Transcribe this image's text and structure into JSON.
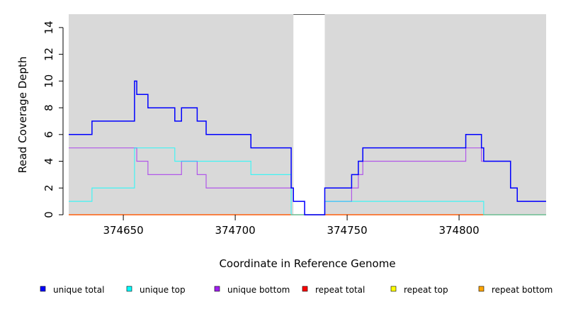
{
  "chart_data": {
    "type": "line",
    "step": true,
    "title": "",
    "xlabel": "Coordinate in Reference Genome",
    "ylabel": "Read Coverage Depth",
    "xlim": [
      374625.6,
      374838.9
    ],
    "ylim": [
      0,
      15
    ],
    "xticks": [
      374650,
      374700,
      374750,
      374800
    ],
    "xtick_labels": [
      "374650",
      "374700",
      "374750",
      "374800"
    ],
    "yticks": [
      0,
      2,
      4,
      6,
      8,
      10,
      12,
      14
    ],
    "ytick_labels": [
      "0",
      "2",
      "4",
      "6",
      "8",
      "10",
      "12",
      "14"
    ],
    "shaded_regions": [
      [
        374625.6,
        374726
      ],
      [
        374740,
        374838.9
      ]
    ],
    "legend_position": "bottom",
    "series": [
      {
        "name": "unique total",
        "color": "#0000ff",
        "x": [
          374625.6,
          374636,
          374655,
          374656,
          374661,
          374673,
          374676,
          374683,
          374687,
          374707,
          374725,
          374726,
          374731,
          374740,
          374752,
          374755,
          374757,
          374803,
          374810,
          374811,
          374823,
          374826,
          374838.9
        ],
        "y": [
          6,
          7,
          10,
          9,
          8,
          7,
          8,
          7,
          6,
          5,
          2,
          1,
          0,
          2,
          3,
          4,
          5,
          6,
          5,
          4,
          2,
          1,
          1
        ]
      },
      {
        "name": "unique top",
        "color": "#00ffff",
        "x": [
          374625.6,
          374636,
          374655,
          374673,
          374707,
          374725,
          374740,
          374811,
          374838.9
        ],
        "y": [
          1,
          2,
          5,
          4,
          3,
          0,
          1,
          0,
          0
        ]
      },
      {
        "name": "unique bottom",
        "color": "#a020f0",
        "x": [
          374625.6,
          374656,
          374661,
          374676,
          374683,
          374687,
          374726,
          374731,
          374740,
          374752,
          374755,
          374757,
          374803,
          374810,
          374823,
          374826,
          374838.9
        ],
        "y": [
          5,
          4,
          3,
          4,
          3,
          2,
          1,
          0,
          1,
          2,
          3,
          4,
          5,
          4,
          2,
          1,
          1
        ]
      },
      {
        "name": "repeat total",
        "color": "#ff0000",
        "x": [
          374625.6,
          374838.9
        ],
        "y": [
          0,
          0
        ]
      },
      {
        "name": "repeat top",
        "color": "#ffff00",
        "x": [
          374625.6,
          374838.9
        ],
        "y": [
          0,
          0
        ]
      },
      {
        "name": "repeat bottom",
        "color": "#ffa500",
        "x": [
          374625.6,
          374838.9
        ],
        "y": [
          0,
          0
        ]
      }
    ]
  }
}
